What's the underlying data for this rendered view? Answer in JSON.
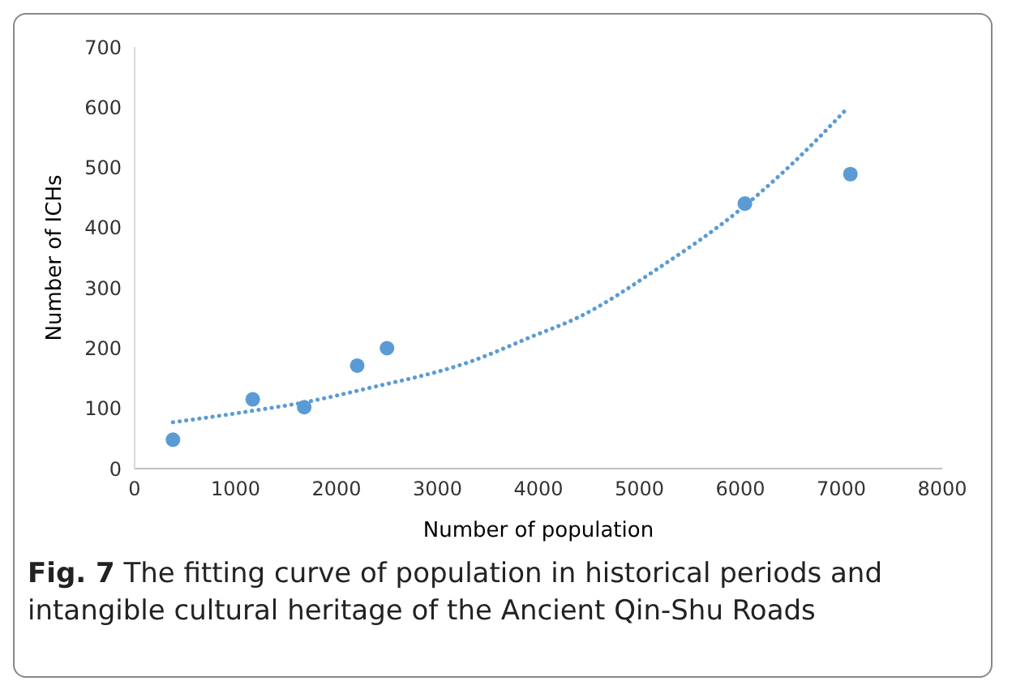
{
  "chart_data": {
    "type": "scatter",
    "title": "Fig. 7",
    "subtitle": "The fitting curve of population in historical periods and intangible cultural heritage of the Ancient Qin-Shu Roads",
    "xlabel": "Number of population",
    "ylabel": "Number of ICHs",
    "series": [
      {
        "color": "#5b9bd5",
        "marker": "circle",
        "x": [
          380,
          1170,
          1680,
          2205,
          2500,
          6045,
          7090
        ],
        "values": [
          48,
          115,
          102,
          171,
          200,
          440,
          489
        ]
      },
      {
        "type": "line",
        "color": "#5b9bd5",
        "marker": "none",
        "line_style": "dotted",
        "x": [
          380,
          1170,
          1680,
          2300,
          3315,
          3960,
          4380,
          5190,
          5990,
          6525,
          7035
        ],
        "values": [
          77,
          96,
          110,
          133,
          177,
          221,
          250,
          333,
          429,
          508,
          594
        ]
      }
    ],
    "xlim": [
      0,
      8000
    ],
    "xticks": [
      0,
      1000,
      2000,
      3000,
      4000,
      5000,
      6000,
      7000,
      8000
    ],
    "ylim": [
      0,
      700
    ],
    "yticks": [
      0,
      100,
      200,
      300,
      400,
      500,
      600,
      700
    ],
    "grid": false
  }
}
